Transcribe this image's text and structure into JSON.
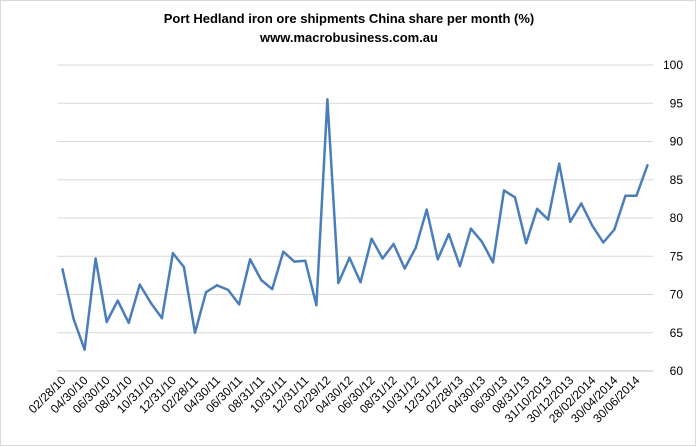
{
  "chart_data": {
    "type": "line",
    "title": "Port Hedland iron ore shipments China share per month (%)",
    "subtitle": "www.macrobusiness.com.au",
    "xlabel": "",
    "ylabel": "",
    "ylim": [
      60,
      100
    ],
    "yticks": [
      60,
      65,
      70,
      75,
      80,
      85,
      90,
      95,
      100
    ],
    "y_axis_side": "right",
    "grid": "horizontal",
    "series_color": "#4a7ebb",
    "x_tick_labels": [
      "02/28/10",
      "04/30/10",
      "06/30/10",
      "08/31/10",
      "10/31/10",
      "12/31/10",
      "02/28/11",
      "04/30/11",
      "06/30/11",
      "08/31/11",
      "10/31/11",
      "12/31/11",
      "02/29/12",
      "04/30/12",
      "06/30/12",
      "08/31/12",
      "10/31/12",
      "12/31/12",
      "02/28/13",
      "04/30/13",
      "06/30/13",
      "08/31/13",
      "31/10/2013",
      "30/12/2013",
      "28/02/2014",
      "30/04/2014",
      "30/06/2014"
    ],
    "series": [
      {
        "values": [
          73.3,
          66.8,
          62.8,
          74.7,
          66.4,
          69.2,
          66.3,
          71.3,
          68.9,
          66.9,
          75.4,
          73.6,
          65.0,
          70.3,
          71.2,
          70.6,
          68.7,
          74.6,
          71.9,
          70.7,
          75.6,
          74.3,
          74.4,
          68.6,
          95.5,
          71.5,
          74.8,
          71.6,
          77.3,
          74.7,
          76.6,
          73.4,
          76.1,
          81.1,
          74.6,
          77.9,
          73.7,
          78.6,
          76.9,
          74.2,
          83.6,
          82.7,
          76.7,
          81.2,
          79.8,
          87.1,
          79.5,
          81.9,
          79.0,
          76.8,
          78.5,
          82.9,
          82.9,
          86.9
        ]
      }
    ]
  }
}
